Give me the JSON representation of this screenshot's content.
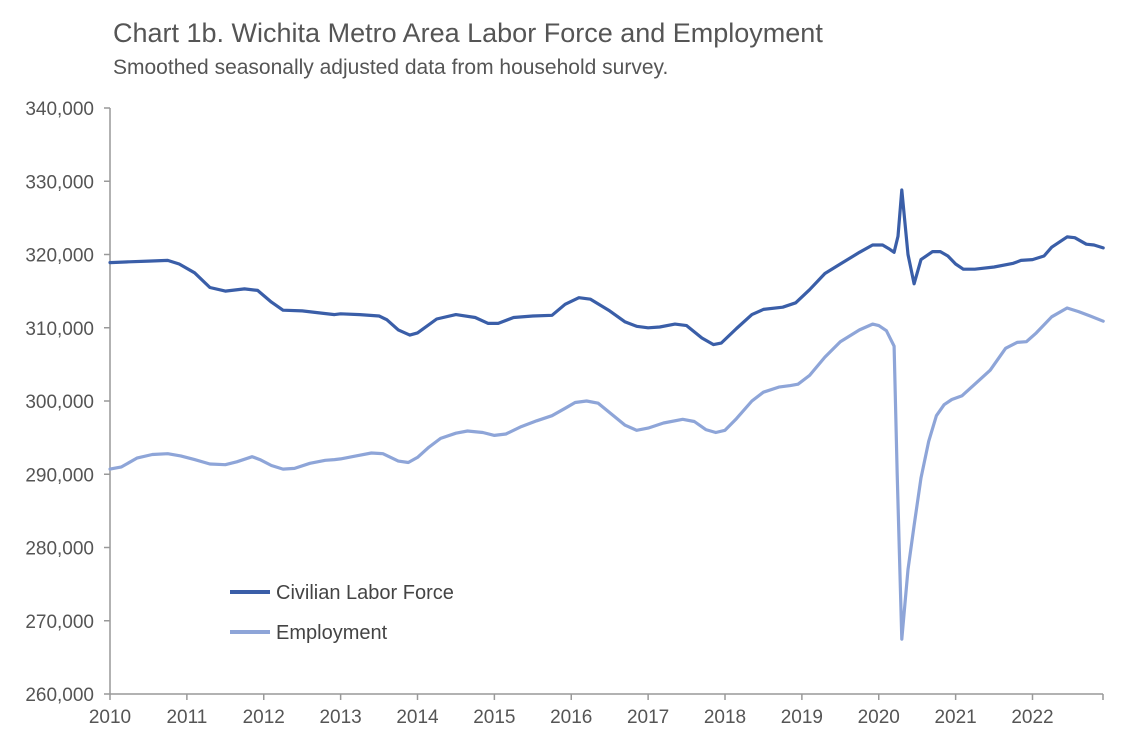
{
  "chart_data": {
    "type": "line",
    "title": "Chart 1b. Wichita Metro Area Labor Force and Employment",
    "subtitle": "Smoothed seasonally adjusted data from household survey.",
    "xlabel": "",
    "ylabel": "",
    "xlim": [
      2010,
      2022.917
    ],
    "ylim": [
      260000,
      340000
    ],
    "y_ticks": [
      260000,
      270000,
      280000,
      290000,
      300000,
      310000,
      320000,
      330000,
      340000
    ],
    "y_tick_labels": [
      "260,000",
      "270,000",
      "280,000",
      "290,000",
      "300,000",
      "310,000",
      "320,000",
      "330,000",
      "340,000"
    ],
    "x_ticks": [
      2010,
      2011,
      2012,
      2013,
      2014,
      2015,
      2016,
      2017,
      2018,
      2019,
      2020,
      2021,
      2022
    ],
    "x_tick_labels": [
      "2010",
      "2011",
      "2012",
      "2013",
      "2014",
      "2015",
      "2016",
      "2017",
      "2018",
      "2019",
      "2020",
      "2021",
      "2022"
    ],
    "grid": false,
    "legend_position": "bottom-left",
    "series": [
      {
        "name": "Civilian Labor Force",
        "color": "#3a5ea8",
        "points": [
          [
            2010.0,
            318900
          ],
          [
            2010.25,
            319000
          ],
          [
            2010.5,
            319100
          ],
          [
            2010.75,
            319200
          ],
          [
            2010.9,
            318700
          ],
          [
            2011.1,
            317500
          ],
          [
            2011.3,
            315500
          ],
          [
            2011.5,
            315000
          ],
          [
            2011.75,
            315300
          ],
          [
            2011.92,
            315100
          ],
          [
            2012.1,
            313500
          ],
          [
            2012.25,
            312400
          ],
          [
            2012.5,
            312300
          ],
          [
            2012.75,
            312000
          ],
          [
            2012.92,
            311800
          ],
          [
            2013.0,
            311900
          ],
          [
            2013.25,
            311800
          ],
          [
            2013.5,
            311600
          ],
          [
            2013.6,
            311100
          ],
          [
            2013.75,
            309700
          ],
          [
            2013.9,
            309000
          ],
          [
            2014.0,
            309300
          ],
          [
            2014.25,
            311200
          ],
          [
            2014.5,
            311800
          ],
          [
            2014.75,
            311400
          ],
          [
            2014.92,
            310600
          ],
          [
            2015.05,
            310600
          ],
          [
            2015.25,
            311400
          ],
          [
            2015.5,
            311600
          ],
          [
            2015.75,
            311700
          ],
          [
            2015.92,
            313200
          ],
          [
            2016.1,
            314100
          ],
          [
            2016.25,
            313900
          ],
          [
            2016.5,
            312300
          ],
          [
            2016.7,
            310800
          ],
          [
            2016.85,
            310200
          ],
          [
            2017.0,
            310000
          ],
          [
            2017.15,
            310100
          ],
          [
            2017.35,
            310500
          ],
          [
            2017.5,
            310300
          ],
          [
            2017.7,
            308600
          ],
          [
            2017.85,
            307700
          ],
          [
            2017.95,
            307900
          ],
          [
            2018.15,
            309900
          ],
          [
            2018.35,
            311800
          ],
          [
            2018.5,
            312500
          ],
          [
            2018.75,
            312800
          ],
          [
            2018.92,
            313400
          ],
          [
            2019.1,
            315200
          ],
          [
            2019.3,
            317400
          ],
          [
            2019.5,
            318700
          ],
          [
            2019.75,
            320300
          ],
          [
            2019.92,
            321300
          ],
          [
            2020.05,
            321300
          ],
          [
            2020.13,
            320800
          ],
          [
            2020.2,
            320300
          ],
          [
            2020.25,
            322500
          ],
          [
            2020.3,
            328800
          ],
          [
            2020.38,
            320000
          ],
          [
            2020.46,
            316000
          ],
          [
            2020.55,
            319300
          ],
          [
            2020.7,
            320400
          ],
          [
            2020.8,
            320400
          ],
          [
            2020.9,
            319800
          ],
          [
            2021.0,
            318700
          ],
          [
            2021.1,
            318000
          ],
          [
            2021.25,
            318000
          ],
          [
            2021.5,
            318300
          ],
          [
            2021.75,
            318800
          ],
          [
            2021.85,
            319200
          ],
          [
            2022.0,
            319300
          ],
          [
            2022.15,
            319800
          ],
          [
            2022.25,
            321000
          ],
          [
            2022.45,
            322400
          ],
          [
            2022.55,
            322300
          ],
          [
            2022.7,
            321400
          ],
          [
            2022.8,
            321300
          ],
          [
            2022.92,
            320900
          ]
        ]
      },
      {
        "name": "Employment",
        "color": "#8ea5d8",
        "points": [
          [
            2010.0,
            290700
          ],
          [
            2010.15,
            291000
          ],
          [
            2010.35,
            292200
          ],
          [
            2010.55,
            292700
          ],
          [
            2010.75,
            292800
          ],
          [
            2010.92,
            292500
          ],
          [
            2011.1,
            292000
          ],
          [
            2011.3,
            291400
          ],
          [
            2011.5,
            291300
          ],
          [
            2011.65,
            291700
          ],
          [
            2011.85,
            292400
          ],
          [
            2011.95,
            292000
          ],
          [
            2012.1,
            291200
          ],
          [
            2012.25,
            290700
          ],
          [
            2012.4,
            290800
          ],
          [
            2012.6,
            291500
          ],
          [
            2012.8,
            291900
          ],
          [
            2012.92,
            292000
          ],
          [
            2013.0,
            292100
          ],
          [
            2013.2,
            292500
          ],
          [
            2013.4,
            292900
          ],
          [
            2013.55,
            292800
          ],
          [
            2013.75,
            291800
          ],
          [
            2013.88,
            291600
          ],
          [
            2014.0,
            292300
          ],
          [
            2014.15,
            293700
          ],
          [
            2014.3,
            294900
          ],
          [
            2014.5,
            295600
          ],
          [
            2014.65,
            295900
          ],
          [
            2014.85,
            295700
          ],
          [
            2015.0,
            295300
          ],
          [
            2015.15,
            295500
          ],
          [
            2015.35,
            296500
          ],
          [
            2015.55,
            297300
          ],
          [
            2015.75,
            298000
          ],
          [
            2015.92,
            299000
          ],
          [
            2016.05,
            299800
          ],
          [
            2016.2,
            300000
          ],
          [
            2016.35,
            299700
          ],
          [
            2016.55,
            298000
          ],
          [
            2016.7,
            296700
          ],
          [
            2016.85,
            296000
          ],
          [
            2017.0,
            296300
          ],
          [
            2017.2,
            297000
          ],
          [
            2017.45,
            297500
          ],
          [
            2017.6,
            297200
          ],
          [
            2017.75,
            296100
          ],
          [
            2017.88,
            295700
          ],
          [
            2018.0,
            296000
          ],
          [
            2018.15,
            297600
          ],
          [
            2018.35,
            300000
          ],
          [
            2018.5,
            301200
          ],
          [
            2018.7,
            301900
          ],
          [
            2018.85,
            302100
          ],
          [
            2018.95,
            302300
          ],
          [
            2019.1,
            303500
          ],
          [
            2019.3,
            306000
          ],
          [
            2019.5,
            308100
          ],
          [
            2019.75,
            309700
          ],
          [
            2019.92,
            310500
          ],
          [
            2020.0,
            310300
          ],
          [
            2020.1,
            309600
          ],
          [
            2020.2,
            307500
          ],
          [
            2020.24,
            290000
          ],
          [
            2020.3,
            267500
          ],
          [
            2020.38,
            277000
          ],
          [
            2020.46,
            283000
          ],
          [
            2020.55,
            289500
          ],
          [
            2020.65,
            294500
          ],
          [
            2020.75,
            298000
          ],
          [
            2020.85,
            299500
          ],
          [
            2020.95,
            300200
          ],
          [
            2021.08,
            300700
          ],
          [
            2021.25,
            302300
          ],
          [
            2021.45,
            304200
          ],
          [
            2021.65,
            307200
          ],
          [
            2021.8,
            308000
          ],
          [
            2021.92,
            308100
          ],
          [
            2022.05,
            309300
          ],
          [
            2022.25,
            311500
          ],
          [
            2022.45,
            312700
          ],
          [
            2022.6,
            312200
          ],
          [
            2022.75,
            311600
          ],
          [
            2022.92,
            310900
          ]
        ]
      }
    ]
  }
}
